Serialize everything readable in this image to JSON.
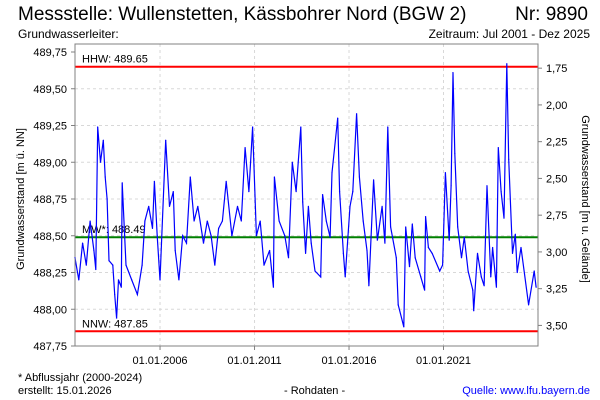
{
  "header": {
    "title": "Messstelle: Wullenstetten, Kässbohrer Nord (BGW 2)",
    "number": "Nr: 9890",
    "aquifer": "Grundwasserleiter:",
    "period": "Zeitraum: Jul 2001 - Dez 2025"
  },
  "footer": {
    "footnote": "* Abflussjahr (2000-2024)",
    "created": "erstellt:  15.01.2026",
    "raw": "- Rohdaten -",
    "source": "Quelle: www.lfu.bayern.de"
  },
  "colors": {
    "series": "#0000ff",
    "extreme": "#ff0000",
    "mean": "#008000"
  },
  "chart_data": {
    "type": "line",
    "ylabel": "Grundwasserstand [m ü. NN]",
    "y2label": "Grundwasserstand [m u. Gelände]",
    "ylim": [
      487.75,
      489.75
    ],
    "yticks": [
      "487,75",
      "488,00",
      "488,25",
      "488,50",
      "488,75",
      "489,00",
      "489,25",
      "489,50",
      "489,75"
    ],
    "ground_level": 491.39,
    "y2ticks": [
      "1,75",
      "2,00",
      "2,25",
      "2,50",
      "2,75",
      "3,00",
      "3,25",
      "3,50"
    ],
    "xlim": [
      2001.5,
      2026.0
    ],
    "xticks": [
      {
        "label": "01.01.2006",
        "x": 2006
      },
      {
        "label": "01.01.2011",
        "x": 2011
      },
      {
        "label": "01.01.2016",
        "x": 2016
      },
      {
        "label": "01.01.2021",
        "x": 2021
      }
    ],
    "reference_lines": [
      {
        "label": "HHW: 489.65",
        "value": 489.65,
        "kind": "extreme"
      },
      {
        "label": "MW*: 488.49",
        "value": 488.49,
        "kind": "mean"
      },
      {
        "label": "NNW: 487.85",
        "value": 487.85,
        "kind": "extreme"
      }
    ],
    "series": [
      {
        "name": "Grundwasserstand",
        "points": [
          [
            2001.5,
            488.35
          ],
          [
            2001.7,
            488.2
          ],
          [
            2001.9,
            488.45
          ],
          [
            2002.1,
            488.3
          ],
          [
            2002.3,
            488.6
          ],
          [
            2002.5,
            488.4
          ],
          [
            2002.6,
            488.27
          ],
          [
            2002.7,
            489.24
          ],
          [
            2002.85,
            489.0
          ],
          [
            2003.0,
            489.15
          ],
          [
            2003.1,
            488.9
          ],
          [
            2003.2,
            488.75
          ],
          [
            2003.3,
            488.33
          ],
          [
            2003.5,
            488.3
          ],
          [
            2003.6,
            488.1
          ],
          [
            2003.7,
            487.94
          ],
          [
            2003.8,
            488.2
          ],
          [
            2003.95,
            488.15
          ],
          [
            2004.0,
            488.86
          ],
          [
            2004.2,
            488.3
          ],
          [
            2004.5,
            488.2
          ],
          [
            2004.8,
            488.1
          ],
          [
            2005.05,
            488.3
          ],
          [
            2005.2,
            488.6
          ],
          [
            2005.4,
            488.7
          ],
          [
            2005.6,
            488.55
          ],
          [
            2005.7,
            488.87
          ],
          [
            2005.85,
            488.5
          ],
          [
            2006.0,
            488.2
          ],
          [
            2006.3,
            489.15
          ],
          [
            2006.5,
            488.7
          ],
          [
            2006.7,
            488.8
          ],
          [
            2006.8,
            488.4
          ],
          [
            2007.0,
            488.2
          ],
          [
            2007.2,
            488.5
          ],
          [
            2007.4,
            488.45
          ],
          [
            2007.6,
            488.9
          ],
          [
            2007.8,
            488.6
          ],
          [
            2008.0,
            488.7
          ],
          [
            2008.3,
            488.45
          ],
          [
            2008.5,
            488.6
          ],
          [
            2008.7,
            488.5
          ],
          [
            2008.9,
            488.3
          ],
          [
            2009.1,
            488.55
          ],
          [
            2009.3,
            488.6
          ],
          [
            2009.5,
            488.87
          ],
          [
            2009.8,
            488.5
          ],
          [
            2010.1,
            488.7
          ],
          [
            2010.3,
            488.6
          ],
          [
            2010.5,
            489.1
          ],
          [
            2010.7,
            488.8
          ],
          [
            2010.9,
            489.24
          ],
          [
            2011.1,
            488.5
          ],
          [
            2011.3,
            488.6
          ],
          [
            2011.5,
            488.3
          ],
          [
            2011.8,
            488.4
          ],
          [
            2012.0,
            488.15
          ],
          [
            2012.05,
            488.9
          ],
          [
            2012.3,
            488.6
          ],
          [
            2012.6,
            488.5
          ],
          [
            2012.8,
            488.35
          ],
          [
            2013.0,
            489.0
          ],
          [
            2013.2,
            488.8
          ],
          [
            2013.45,
            489.24
          ],
          [
            2013.55,
            488.73
          ],
          [
            2013.7,
            488.38
          ],
          [
            2013.85,
            488.7
          ],
          [
            2014.0,
            488.45
          ],
          [
            2014.2,
            488.26
          ],
          [
            2014.5,
            488.22
          ],
          [
            2014.6,
            488.78
          ],
          [
            2014.8,
            488.6
          ],
          [
            2015.0,
            488.49
          ],
          [
            2015.1,
            488.93
          ],
          [
            2015.4,
            489.3
          ],
          [
            2015.5,
            488.8
          ],
          [
            2015.7,
            488.38
          ],
          [
            2015.8,
            488.22
          ],
          [
            2016.05,
            488.7
          ],
          [
            2016.2,
            488.8
          ],
          [
            2016.4,
            489.33
          ],
          [
            2016.55,
            488.9
          ],
          [
            2016.75,
            488.6
          ],
          [
            2016.95,
            488.4
          ],
          [
            2017.05,
            488.16
          ],
          [
            2017.3,
            488.88
          ],
          [
            2017.5,
            488.47
          ],
          [
            2017.75,
            488.7
          ],
          [
            2017.9,
            488.45
          ],
          [
            2018.05,
            489.24
          ],
          [
            2018.2,
            488.56
          ],
          [
            2018.5,
            488.35
          ],
          [
            2018.6,
            488.03
          ],
          [
            2018.9,
            487.88
          ],
          [
            2019.0,
            488.56
          ],
          [
            2019.2,
            488.29
          ],
          [
            2019.35,
            488.58
          ],
          [
            2019.5,
            488.35
          ],
          [
            2019.8,
            488.22
          ],
          [
            2020.0,
            488.13
          ],
          [
            2020.05,
            488.63
          ],
          [
            2020.2,
            488.42
          ],
          [
            2020.4,
            488.38
          ],
          [
            2020.8,
            488.26
          ],
          [
            2020.95,
            488.3
          ],
          [
            2021.1,
            488.93
          ],
          [
            2021.3,
            488.47
          ],
          [
            2021.4,
            488.84
          ],
          [
            2021.5,
            489.61
          ],
          [
            2021.6,
            489.06
          ],
          [
            2021.75,
            488.56
          ],
          [
            2021.95,
            488.35
          ],
          [
            2022.1,
            488.49
          ],
          [
            2022.3,
            488.26
          ],
          [
            2022.55,
            488.13
          ],
          [
            2022.6,
            487.99
          ],
          [
            2022.8,
            488.38
          ],
          [
            2023.0,
            488.22
          ],
          [
            2023.15,
            488.16
          ],
          [
            2023.3,
            488.84
          ],
          [
            2023.5,
            488.22
          ],
          [
            2023.6,
            488.42
          ],
          [
            2023.8,
            488.15
          ],
          [
            2023.9,
            489.1
          ],
          [
            2024.05,
            488.8
          ],
          [
            2024.2,
            488.62
          ],
          [
            2024.35,
            489.67
          ],
          [
            2024.45,
            489.02
          ],
          [
            2024.65,
            488.38
          ],
          [
            2024.8,
            488.51
          ],
          [
            2024.9,
            488.25
          ],
          [
            2025.1,
            488.42
          ],
          [
            2025.5,
            488.03
          ],
          [
            2025.8,
            488.26
          ],
          [
            2025.9,
            488.15
          ]
        ]
      }
    ]
  }
}
